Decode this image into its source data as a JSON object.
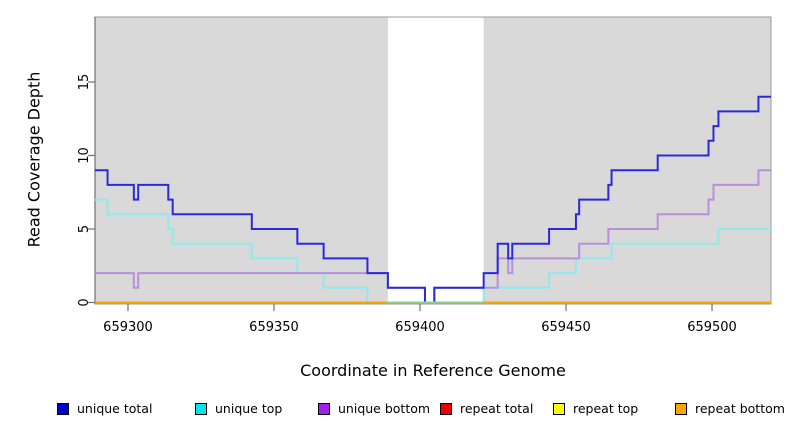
{
  "chart_data": {
    "type": "line",
    "subtype": "step-coverage",
    "title": "",
    "xlabel": "Coordinate in Reference Genome",
    "ylabel": "Read Coverage Depth",
    "xlim": [
      659288.7,
      659520.2
    ],
    "ylim": [
      0,
      19.4
    ],
    "x_ticks": [
      659300,
      659350,
      659400,
      659450,
      659500
    ],
    "y_ticks": [
      0,
      5,
      10,
      15
    ],
    "grid": false,
    "legend_position": "bottom",
    "plot_bg": "#d9d9d9",
    "frame_color": "#9a9a9a",
    "axis_color": "#707070",
    "gap_region": {
      "x_start": 659389,
      "x_end": 659421.8,
      "color": "#ffffff"
    },
    "zero_line_in_gap": {
      "color": "#8fce8f",
      "x_start": 659388.5,
      "x_end": 659421.8,
      "y": 0
    },
    "series": [
      {
        "name": "unique total",
        "color": "#2a2add",
        "legend_color": "#0000cd",
        "steps": [
          [
            659288.7,
            9
          ],
          [
            659293,
            8
          ],
          [
            659302,
            7
          ],
          [
            659303.5,
            8
          ],
          [
            659313.8,
            7
          ],
          [
            659315.3,
            6
          ],
          [
            659342.4,
            5
          ],
          [
            659358,
            4
          ],
          [
            659367,
            3
          ],
          [
            659382,
            2
          ],
          [
            659389,
            1
          ],
          [
            659401.7,
            0
          ],
          [
            659404.9,
            1
          ],
          [
            659421.8,
            2
          ],
          [
            659426.6,
            4
          ],
          [
            659430.2,
            3
          ],
          [
            659431.6,
            4
          ],
          [
            659444.2,
            5
          ],
          [
            659453.4,
            6
          ],
          [
            659454.5,
            7
          ],
          [
            659464.5,
            8
          ],
          [
            659465.6,
            9
          ],
          [
            659481.4,
            10
          ],
          [
            659498.8,
            11
          ],
          [
            659500.5,
            12
          ],
          [
            659502.2,
            13
          ],
          [
            659515.9,
            14
          ]
        ]
      },
      {
        "name": "unique top",
        "color": "#8feaee",
        "legend_color": "#00e5ee",
        "steps": [
          [
            659288.7,
            7
          ],
          [
            659293,
            6
          ],
          [
            659313.8,
            5
          ],
          [
            659315.3,
            4
          ],
          [
            659342.4,
            3
          ],
          [
            659358,
            2
          ],
          [
            659367,
            1
          ],
          [
            659382,
            0
          ],
          [
            659421.8,
            1
          ],
          [
            659444.2,
            2
          ],
          [
            659453.4,
            3
          ],
          [
            659465.6,
            4
          ],
          [
            659502.2,
            5
          ]
        ]
      },
      {
        "name": "unique bottom",
        "color": "#b98fdc",
        "legend_color": "#a020f0",
        "steps": [
          [
            659288.7,
            2
          ],
          [
            659302,
            1
          ],
          [
            659303.5,
            2
          ],
          [
            659389,
            1
          ],
          [
            659401.7,
            0
          ],
          [
            659404.9,
            1
          ],
          [
            659426.6,
            3
          ],
          [
            659430.2,
            2
          ],
          [
            659431.6,
            3
          ],
          [
            659454.5,
            4
          ],
          [
            659464.5,
            5
          ],
          [
            659481.4,
            6
          ],
          [
            659498.8,
            7
          ],
          [
            659500.5,
            8
          ],
          [
            659515.9,
            9
          ]
        ]
      },
      {
        "name": "repeat total",
        "color": "#ee0000",
        "legend_color": "#ee0000",
        "steps": [
          [
            659288.7,
            0
          ]
        ]
      },
      {
        "name": "repeat top",
        "color": "#ffff00",
        "legend_color": "#ffff00",
        "steps": [
          [
            659288.7,
            0
          ]
        ]
      },
      {
        "name": "repeat bottom",
        "color": "#ffa500",
        "legend_color": "#ffa500",
        "steps": [
          [
            659288.7,
            0
          ]
        ]
      }
    ]
  }
}
